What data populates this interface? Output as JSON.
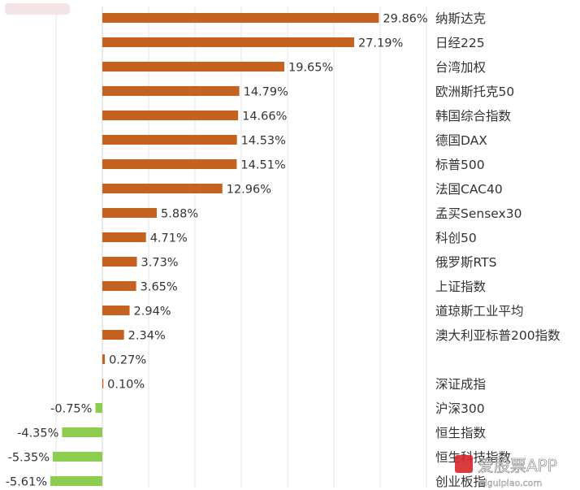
{
  "chart_data": {
    "type": "bar",
    "orientation": "horizontal",
    "title": "",
    "xlabel": "",
    "ylabel": "",
    "categories": [
      "纳斯达克",
      "日经225",
      "台湾加权",
      "欧洲斯托克50",
      "韩国综合指数",
      "德国DAX",
      "标普500",
      "法国CAC40",
      "孟买Sensex30",
      "科创50",
      "俄罗斯RTS",
      "上证指数",
      "道琼斯工业平均",
      "澳大利亚标普200指数",
      "",
      "深证成指",
      "沪深300",
      "恒生指数",
      "恒生科技指数",
      "创业板指"
    ],
    "values": [
      29.86,
      27.19,
      19.65,
      14.79,
      14.66,
      14.53,
      14.51,
      12.96,
      5.88,
      4.71,
      3.73,
      3.65,
      2.94,
      2.34,
      0.27,
      0.1,
      -0.75,
      -4.35,
      -5.35,
      -5.61
    ],
    "value_labels": [
      "29.86%",
      "27.19%",
      "19.65%",
      "14.79%",
      "14.66%",
      "14.53%",
      "14.51%",
      "12.96%",
      "5.88%",
      "4.71%",
      "3.73%",
      "3.65%",
      "2.94%",
      "2.34%",
      "0.27%",
      "0.10%",
      "-0.75%",
      "-4.35%",
      "-5.35%",
      "-5.61%"
    ],
    "grid": true,
    "colors": {
      "positive": "#c5621f",
      "negative": "#8ccc4e",
      "grid": "#e6e6e6",
      "text": "#333333"
    }
  },
  "watermark": {
    "text": "爱股票APP",
    "url": "aiguipiao.com"
  }
}
